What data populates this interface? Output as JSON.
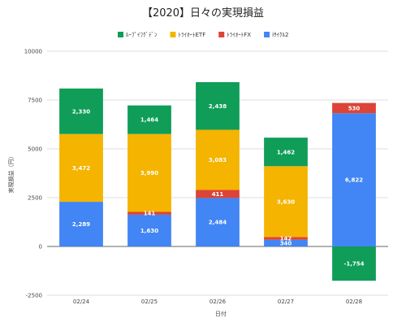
{
  "chart_data": {
    "type": "bar",
    "stacked": true,
    "title": "【2020】日々の実現損益",
    "xlabel": "日付",
    "ylabel": "実現損益（円）",
    "ylim": [
      -2500,
      10000
    ],
    "yticks": [
      -2500,
      0,
      2500,
      5000,
      7500,
      10000
    ],
    "ytick_labels": [
      "-2500",
      "0",
      "2500",
      "5000",
      "7500",
      "10000"
    ],
    "categories": [
      "02/24",
      "02/25",
      "02/26",
      "02/27",
      "02/28"
    ],
    "grid": true,
    "legend_position": "top",
    "series": [
      {
        "name": "ﾙｰﾌﾟｲﾌｸﾞﾃﾞﾝ",
        "color": "#0f9d58",
        "values": [
          2330,
          1464,
          2438,
          1462,
          -1754
        ],
        "labels": [
          "2,330",
          "1,464",
          "2,438",
          "1,462",
          "-1,754"
        ]
      },
      {
        "name": "ﾄﾗｲｵｰﾄETF",
        "color": "#f4b400",
        "values": [
          3472,
          3990,
          3083,
          3630,
          0
        ],
        "labels": [
          "3,472",
          "3,990",
          "3,083",
          "3,630",
          ""
        ]
      },
      {
        "name": "ﾄﾗｲｵｰﾄFX",
        "color": "#db4437",
        "values": [
          0,
          141,
          411,
          142,
          530
        ],
        "labels": [
          "",
          "141",
          "411",
          "142",
          "530"
        ]
      },
      {
        "name": "iｻｲｸﾙ2",
        "color": "#4285f4",
        "values": [
          2289,
          1630,
          2484,
          340,
          6822
        ],
        "labels": [
          "2,289",
          "1,630",
          "2,484",
          "340",
          "6,822"
        ]
      }
    ]
  }
}
